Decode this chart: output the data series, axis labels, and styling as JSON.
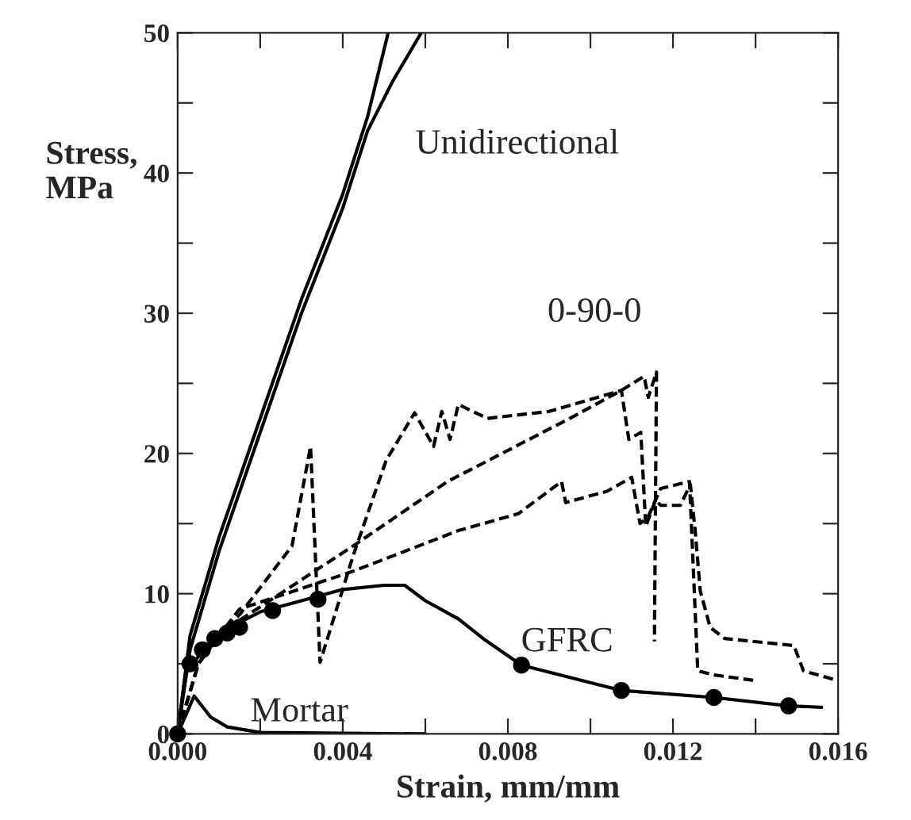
{
  "chart_data": {
    "type": "line",
    "xlabel": "Strain, mm/mm",
    "ylabel": "Stress,\nMPa",
    "xlim": [
      0,
      0.016
    ],
    "ylim": [
      0,
      50
    ],
    "xticks": [
      {
        "value": 0,
        "label": "0.000"
      },
      {
        "value": 0.002,
        "label": null
      },
      {
        "value": 0.004,
        "label": "0.004"
      },
      {
        "value": 0.006,
        "label": null
      },
      {
        "value": 0.008,
        "label": "0.008"
      },
      {
        "value": 0.01,
        "label": null
      },
      {
        "value": 0.012,
        "label": "0.012"
      },
      {
        "value": 0.014,
        "label": null
      },
      {
        "value": 0.016,
        "label": "0.016"
      }
    ],
    "yticks": [
      0,
      {
        "value": 5,
        "label": null
      },
      10,
      {
        "value": 15,
        "label": null
      },
      20,
      {
        "value": 25,
        "label": null
      },
      30,
      {
        "value": 35,
        "label": null
      },
      40,
      {
        "value": 45,
        "label": null
      },
      50
    ],
    "grid": false,
    "legend": false,
    "series": [
      {
        "color": "#000000",
        "line_style": "solid",
        "x": [
          0,
          0.0003,
          0.001,
          0.002,
          0.003,
          0.004,
          0.0046,
          0.0051
        ],
        "values": [
          0,
          7,
          14,
          22.5,
          31,
          38.5,
          44,
          50
        ]
      },
      {
        "color": "#000000",
        "line_style": "solid",
        "x": [
          0,
          0.0003,
          0.001,
          0.002,
          0.003,
          0.004,
          0.0046,
          0.0052,
          0.0059
        ],
        "values": [
          0,
          6,
          13,
          21.5,
          30,
          37.5,
          43,
          46.5,
          50
        ]
      },
      {
        "color": "#000000",
        "line_style": "dashed",
        "x": [
          0,
          0.0005,
          0.001,
          0.0015,
          0.00425,
          0.00654,
          0.00825,
          0.0095,
          0.01075,
          0.0113,
          0.0114,
          0.0116,
          0.01155
        ],
        "values": [
          0,
          5,
          7,
          8.1,
          13.4,
          18,
          20.6,
          22.5,
          24.5,
          25.5,
          24,
          25.8,
          6.6
        ]
      },
      {
        "color": "#000000",
        "line_style": "dashed",
        "x": [
          0,
          0.0005,
          0.001,
          0.0015,
          0.00425,
          0.0068,
          0.00825,
          0.0093,
          0.0094,
          0.0104,
          0.011,
          0.0112,
          0.0114,
          0.0117,
          0.0124,
          0.0126,
          0.013,
          0.014
        ],
        "values": [
          0,
          5,
          7,
          8.9,
          11.6,
          14.5,
          15.7,
          18,
          16.5,
          17.3,
          18.3,
          15,
          15.5,
          17.5,
          18,
          4.5,
          4.2,
          3.8
        ]
      },
      {
        "color": "#000000",
        "line_style": "dashed",
        "x": [
          0,
          0.0005,
          0.001,
          0.0015,
          0.00277,
          0.00322,
          0.00345,
          0.00425,
          0.00505,
          0.00574,
          0.0062,
          0.0064,
          0.0066,
          0.0068,
          0.0075,
          0.009,
          0.01075,
          0.01093,
          0.01122,
          0.01134,
          0.01158,
          0.0117,
          0.01218,
          0.01242,
          0.01254,
          0.01266,
          0.0129,
          0.01325,
          0.01493,
          0.01516,
          0.016
        ],
        "values": [
          0,
          5,
          7,
          8.5,
          13.4,
          20.5,
          5.1,
          12.7,
          19.5,
          22.9,
          20.5,
          23,
          21,
          23.5,
          22.5,
          23,
          24.5,
          21,
          21.5,
          14.8,
          16.7,
          16.3,
          16.3,
          17.8,
          14.4,
          10.2,
          7.6,
          6.8,
          6.3,
          4.5,
          3.8
        ]
      },
      {
        "color": "#000000",
        "line_style": "solid",
        "x": [
          0,
          0.0002,
          0.0005,
          0.001,
          0.002,
          0.003,
          0.004,
          0.005,
          0.0055,
          0.006,
          0.0068,
          0.0074,
          0.00833,
          0.01075,
          0.01299,
          0.0148,
          0.0156
        ],
        "values": [
          0,
          4.5,
          5.5,
          7.2,
          8.7,
          9.5,
          10.3,
          10.6,
          10.6,
          9.5,
          8.2,
          6.8,
          4.9,
          3.1,
          2.6,
          2,
          1.9
        ]
      },
      {
        "type": "scatter",
        "color": "#000000",
        "marker": "circle",
        "x": [
          0,
          0.0003,
          0.0006,
          0.0009,
          0.0012,
          0.0015,
          0.0023,
          0.0034,
          0.00833,
          0.01075,
          0.01299,
          0.0148
        ],
        "values": [
          0,
          5,
          6,
          6.8,
          7.2,
          7.6,
          8.8,
          9.6,
          4.9,
          3.1,
          2.6,
          2
        ]
      },
      {
        "color": "#000000",
        "line_style": "solid",
        "x": [
          0,
          0.0004,
          0.0008,
          0.0012,
          0.002,
          0.006
        ],
        "values": [
          0,
          2.7,
          1.2,
          0.5,
          0.1,
          0
        ]
      }
    ],
    "annotations": [
      "Unidirectional",
      "0-90-0",
      "GFRC",
      "Mortar"
    ]
  }
}
